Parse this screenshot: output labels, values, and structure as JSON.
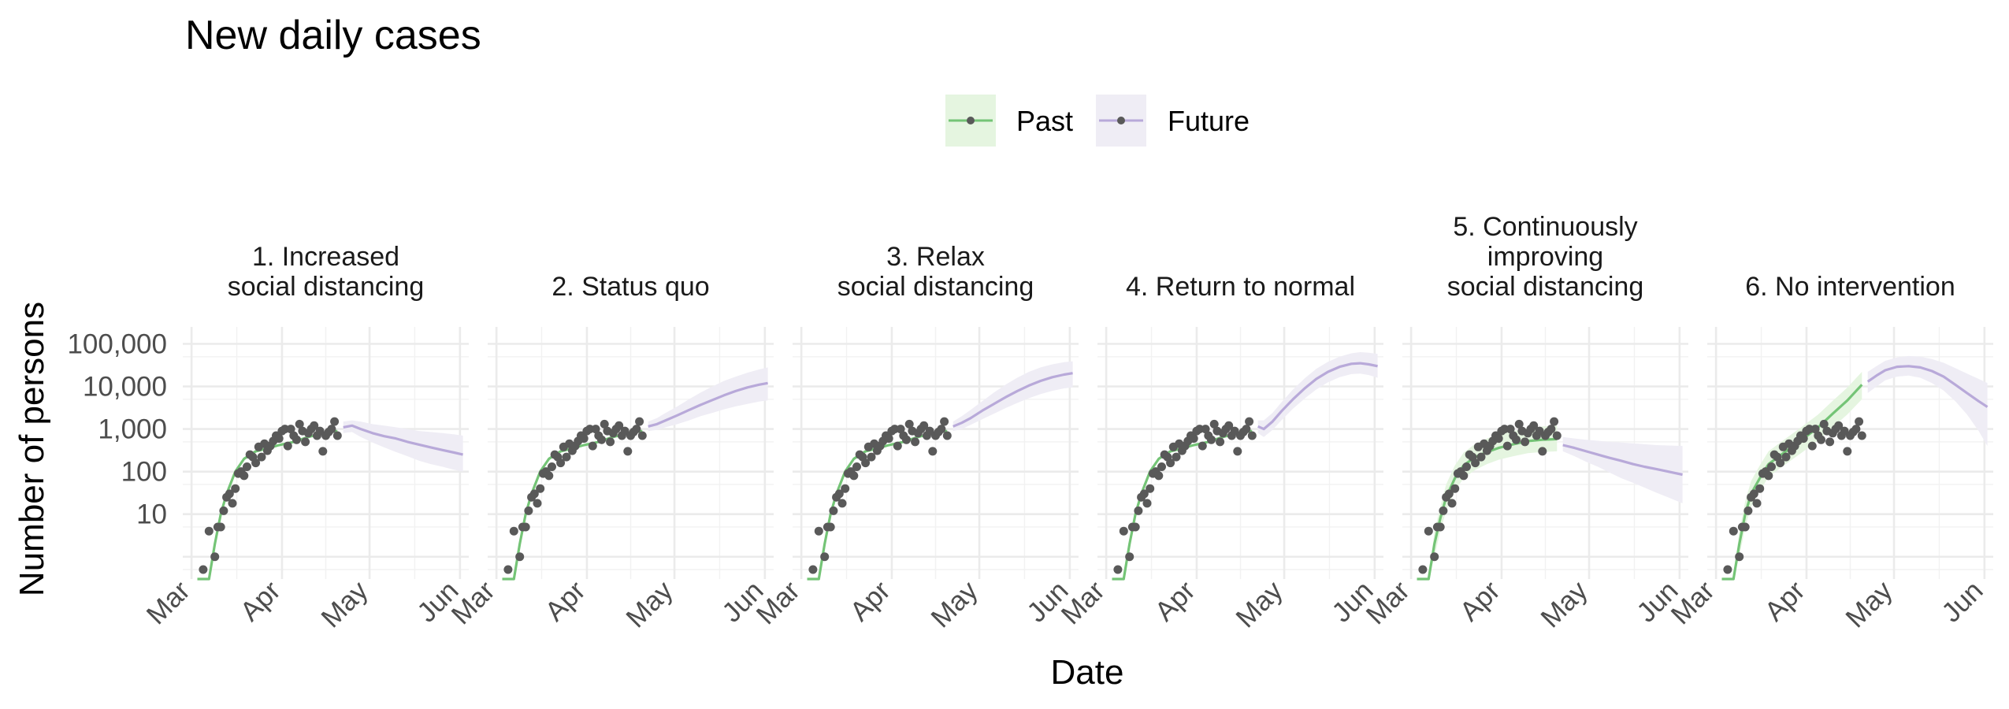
{
  "chart_data": {
    "type": "line",
    "title": "New daily cases",
    "xlabel": "Date",
    "ylabel": "Number of persons",
    "y_scale": "log10",
    "ylim": [
      0.3,
      250000
    ],
    "xlim_day": [
      -3,
      95
    ],
    "x_ticks": [
      {
        "label": "Mar",
        "day": 0
      },
      {
        "label": "Apr",
        "day": 31
      },
      {
        "label": "May",
        "day": 61
      },
      {
        "label": "Jun",
        "day": 92
      }
    ],
    "y_ticks": [
      {
        "label": "10",
        "value": 10
      },
      {
        "label": "100",
        "value": 100
      },
      {
        "label": "1,000",
        "value": 1000
      },
      {
        "label": "10,000",
        "value": 10000
      },
      {
        "label": "100,000",
        "value": 100000
      }
    ],
    "legend": [
      {
        "name": "Past",
        "color": "#74c476",
        "fill": "#e5f5e0"
      },
      {
        "name": "Future",
        "color": "#b8a9d9",
        "fill": "#efedf5"
      }
    ],
    "colors": {
      "observed": "#595959",
      "past": "#74c476",
      "future": "#b8a9d9"
    },
    "observed": {
      "day": [
        4,
        6,
        8,
        9,
        10,
        11,
        12,
        13,
        14,
        15,
        16,
        17,
        18,
        19,
        20,
        21,
        22,
        23,
        24,
        25,
        26,
        27,
        28,
        29,
        30,
        31,
        32,
        33,
        34,
        35,
        36,
        37,
        38,
        39,
        40,
        41,
        42,
        43,
        44,
        45,
        46,
        47,
        48,
        49,
        50
      ],
      "value": [
        0.5,
        4,
        1,
        5,
        5,
        12,
        25,
        30,
        18,
        40,
        90,
        100,
        80,
        130,
        250,
        220,
        160,
        380,
        220,
        450,
        310,
        400,
        520,
        700,
        600,
        900,
        1000,
        400,
        1000,
        700,
        560,
        1300,
        900,
        500,
        800,
        1000,
        1200,
        700,
        900,
        300,
        700,
        850,
        1000,
        1500,
        700
      ]
    },
    "panels": [
      {
        "title_lines": [
          "1. Increased",
          "social distancing"
        ],
        "past": {
          "day": [
            2,
            6,
            8,
            10,
            12,
            15,
            18,
            22,
            26,
            30,
            35,
            40,
            45,
            50
          ],
          "value": [
            0.1,
            0.1,
            2,
            10,
            30,
            100,
            200,
            300,
            350,
            420,
            500,
            650,
            800,
            900
          ]
        },
        "past_band": null,
        "future": {
          "day": [
            52,
            55,
            58,
            62,
            66,
            70,
            74,
            78,
            82,
            86,
            90,
            93
          ],
          "value": [
            1100,
            1200,
            1000,
            800,
            680,
            600,
            500,
            430,
            370,
            320,
            280,
            250
          ]
        },
        "future_band": {
          "lo": [
            800,
            850,
            650,
            480,
            370,
            290,
            230,
            180,
            150,
            130,
            110,
            100
          ],
          "hi": [
            1500,
            1600,
            1500,
            1300,
            1200,
            1100,
            1000,
            900,
            850,
            800,
            750,
            700
          ]
        }
      },
      {
        "title_lines": [
          "2. Status quo"
        ],
        "past": {
          "day": [
            2,
            6,
            8,
            10,
            12,
            15,
            18,
            22,
            26,
            30,
            35,
            40,
            45,
            50
          ],
          "value": [
            0.1,
            0.1,
            2,
            10,
            30,
            100,
            200,
            300,
            350,
            420,
            500,
            650,
            800,
            900
          ]
        },
        "past_band": null,
        "future": {
          "day": [
            52,
            55,
            58,
            62,
            66,
            70,
            74,
            78,
            82,
            86,
            90,
            93
          ],
          "value": [
            1150,
            1300,
            1600,
            2100,
            2800,
            3700,
            4800,
            6200,
            7800,
            9500,
            11000,
            12000
          ]
        },
        "future_band": {
          "lo": [
            900,
            950,
            1100,
            1300,
            1600,
            2000,
            2400,
            2900,
            3400,
            3900,
            4400,
            4700
          ],
          "hi": [
            1500,
            1800,
            2400,
            3400,
            5000,
            7200,
            10000,
            13500,
            17000,
            21000,
            25000,
            28000
          ]
        }
      },
      {
        "title_lines": [
          "3. Relax",
          "social distancing"
        ],
        "past": {
          "day": [
            2,
            6,
            8,
            10,
            12,
            15,
            18,
            22,
            26,
            30,
            35,
            40,
            45,
            50
          ],
          "value": [
            0.1,
            0.1,
            2,
            10,
            30,
            100,
            200,
            300,
            350,
            420,
            500,
            650,
            800,
            900
          ]
        },
        "past_band": null,
        "future": {
          "day": [
            52,
            55,
            58,
            62,
            66,
            70,
            74,
            78,
            82,
            86,
            90,
            93
          ],
          "value": [
            1150,
            1400,
            1800,
            2700,
            3900,
            5600,
            7800,
            10500,
            13500,
            16500,
            19000,
            20500
          ]
        },
        "future_band": {
          "lo": [
            900,
            1000,
            1250,
            1700,
            2300,
            3100,
            4100,
            5300,
            6600,
            7900,
            9000,
            9500
          ],
          "hi": [
            1500,
            2000,
            2800,
            4500,
            7200,
            11000,
            16000,
            22000,
            28000,
            33000,
            37000,
            39000
          ]
        }
      },
      {
        "title_lines": [
          "4. Return to normal"
        ],
        "past": {
          "day": [
            2,
            6,
            8,
            10,
            12,
            15,
            18,
            22,
            26,
            30,
            35,
            40,
            45,
            50
          ],
          "value": [
            0.1,
            0.1,
            2,
            10,
            30,
            100,
            200,
            300,
            350,
            420,
            500,
            650,
            800,
            900
          ]
        },
        "past_band": null,
        "future": {
          "day": [
            52,
            54,
            57,
            60,
            64,
            68,
            72,
            76,
            80,
            84,
            87,
            90,
            93
          ],
          "value": [
            1150,
            1000,
            1500,
            2600,
            5000,
            9000,
            15000,
            22000,
            29000,
            34000,
            35000,
            33000,
            30000
          ]
        },
        "future_band": {
          "lo": [
            800,
            650,
            950,
            1600,
            3000,
            5200,
            8500,
            12500,
            16500,
            19500,
            20000,
            18500,
            16000
          ],
          "hi": [
            1600,
            1600,
            2400,
            4200,
            8500,
            15500,
            26000,
            38000,
            50000,
            60000,
            64000,
            62000,
            58000
          ]
        }
      },
      {
        "title_lines": [
          "5. Continuously",
          "improving",
          "social distancing"
        ],
        "past": {
          "day": [
            2,
            6,
            8,
            10,
            12,
            15,
            18,
            22,
            26,
            30,
            35,
            40,
            45,
            50
          ],
          "value": [
            0.1,
            0.1,
            2,
            8,
            25,
            70,
            140,
            220,
            290,
            360,
            440,
            520,
            560,
            580
          ]
        },
        "past_band": {
          "lo": [
            0.1,
            0.1,
            1,
            4,
            12,
            35,
            70,
            110,
            150,
            190,
            230,
            270,
            290,
            300
          ],
          "hi": [
            0.1,
            0.2,
            4,
            15,
            50,
            140,
            280,
            450,
            600,
            750,
            900,
            1050,
            1150,
            1200
          ]
        },
        "future": {
          "day": [
            52,
            56,
            60,
            64,
            68,
            72,
            76,
            80,
            84,
            88,
            93
          ],
          "value": [
            420,
            360,
            300,
            250,
            210,
            180,
            150,
            130,
            115,
            100,
            85
          ]
        },
        "future_band": {
          "lo": [
            300,
            230,
            170,
            130,
            95,
            70,
            55,
            42,
            32,
            25,
            18
          ],
          "hi": [
            650,
            600,
            560,
            530,
            500,
            480,
            460,
            440,
            420,
            410,
            400
          ]
        }
      },
      {
        "title_lines": [
          "6. No intervention"
        ],
        "past": {
          "day": [
            2,
            6,
            8,
            10,
            12,
            15,
            18,
            22,
            26,
            30,
            35,
            40,
            45,
            50
          ],
          "value": [
            0.1,
            0.1,
            2,
            10,
            30,
            70,
            150,
            240,
            380,
            600,
            1100,
            2300,
            4700,
            11000
          ]
        },
        "past_band": {
          "lo": [
            0.1,
            0.1,
            1,
            5,
            15,
            35,
            75,
            120,
            190,
            300,
            550,
            1100,
            2200,
            5000
          ],
          "hi": [
            0.1,
            0.2,
            4,
            20,
            60,
            140,
            300,
            480,
            760,
            1200,
            2200,
            4600,
            9400,
            22000
          ]
        },
        "future": {
          "day": [
            52,
            55,
            58,
            62,
            66,
            70,
            74,
            78,
            82,
            86,
            90,
            93
          ],
          "value": [
            13000,
            18000,
            24000,
            29000,
            30000,
            28000,
            23000,
            17000,
            11000,
            7000,
            4500,
            3300
          ]
        },
        "future_band": {
          "lo": [
            7000,
            10000,
            14000,
            17000,
            18000,
            16000,
            12000,
            8000,
            4500,
            2200,
            900,
            400
          ],
          "hi": [
            22000,
            30000,
            40000,
            48000,
            52000,
            50000,
            44000,
            36000,
            27000,
            20000,
            15000,
            12000
          ]
        }
      }
    ]
  }
}
